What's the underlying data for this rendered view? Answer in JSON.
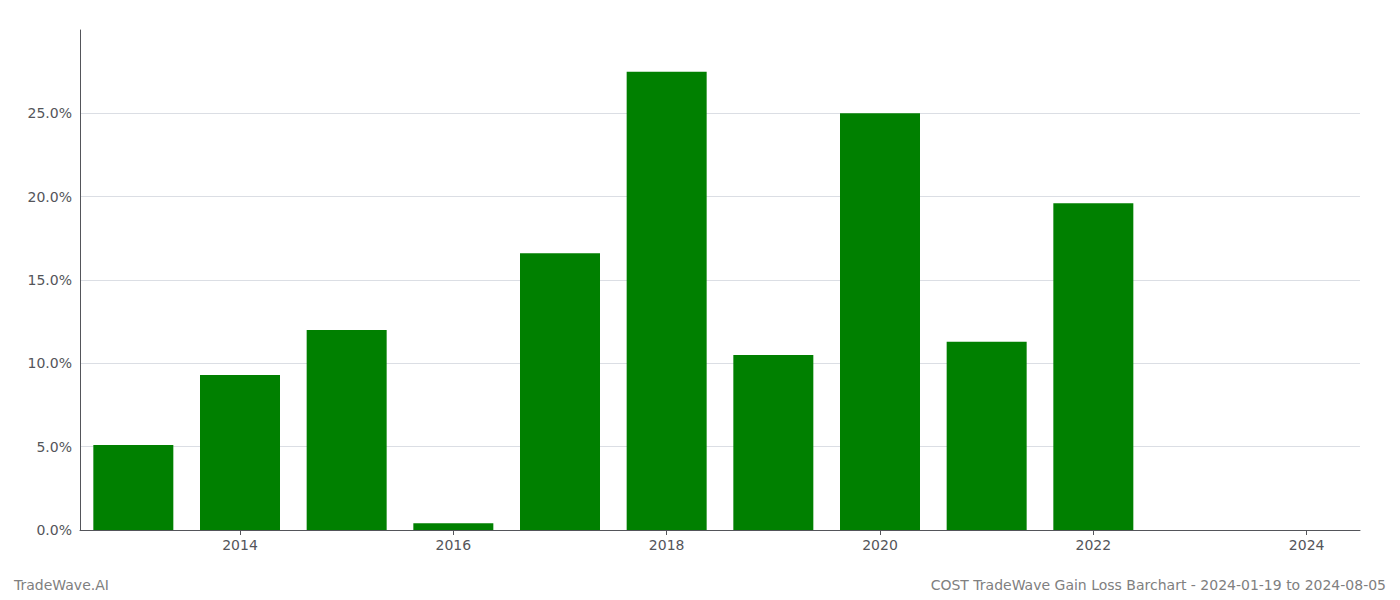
{
  "chart_data": {
    "type": "bar",
    "x": [
      2013,
      2014,
      2015,
      2016,
      2017,
      2018,
      2019,
      2020,
      2021,
      2022,
      2023
    ],
    "values": [
      0.051,
      0.093,
      0.12,
      0.004,
      0.166,
      0.275,
      0.105,
      0.25,
      0.113,
      0.196,
      0.0
    ],
    "color": "#008000",
    "xlim": [
      2012.5,
      2024.5
    ],
    "xticks": [
      2014,
      2016,
      2018,
      2020,
      2022,
      2024
    ],
    "ylim": [
      0,
      0.3
    ],
    "yticks": [
      {
        "value": 0.0,
        "label": "0.0%"
      },
      {
        "value": 0.05,
        "label": "5.0%"
      },
      {
        "value": 0.1,
        "label": "10.0%"
      },
      {
        "value": 0.15,
        "label": "15.0%"
      },
      {
        "value": 0.2,
        "label": "20.0%"
      },
      {
        "value": 0.25,
        "label": "25.0%"
      }
    ],
    "grid": true,
    "annotations": [
      "TradeWave.AI",
      "COST TradeWave Gain Loss Barchart - 2024-01-19 to 2024-08-05"
    ]
  }
}
